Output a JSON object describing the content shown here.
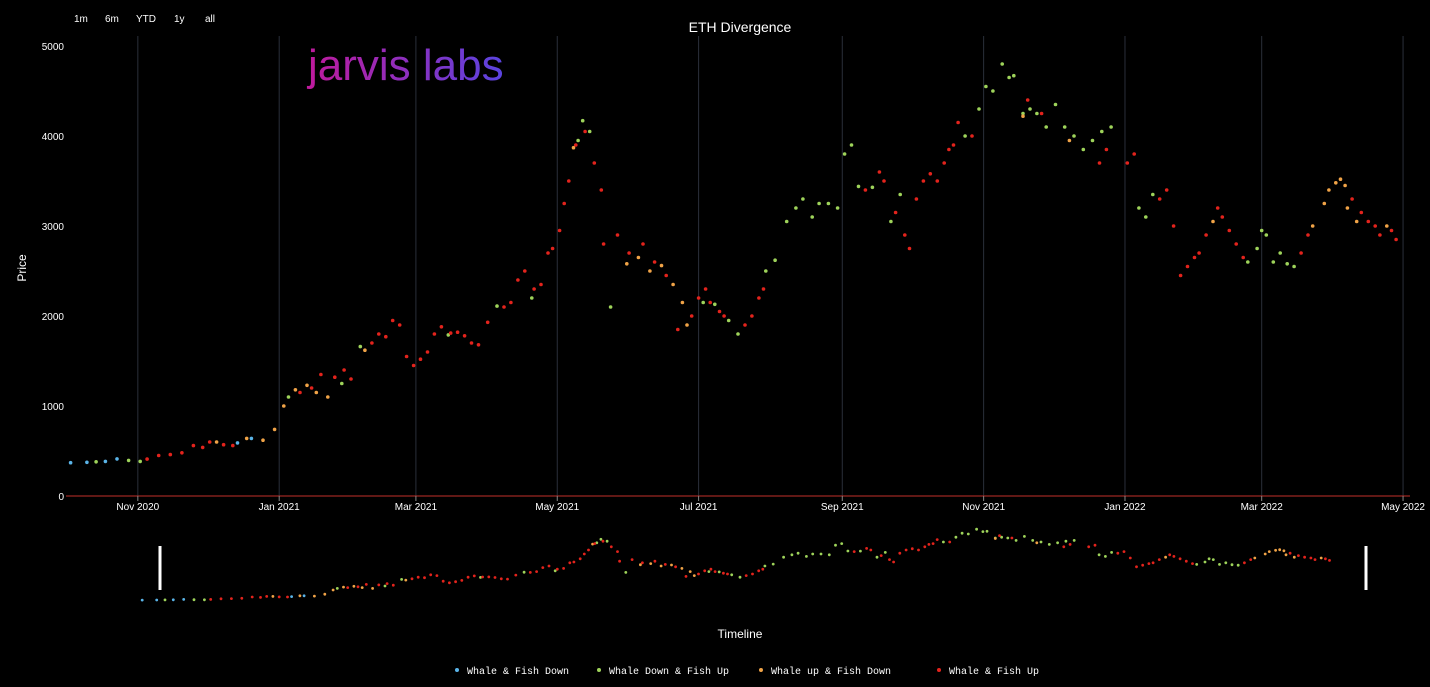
{
  "range_buttons": [
    "1m",
    "6m",
    "YTD",
    "1y",
    "all"
  ],
  "logo_text": "jarvis labs",
  "chart_data": {
    "type": "scatter",
    "title": "ETH Divergence",
    "xlabel": "Timeline",
    "ylabel": "Price",
    "ylim": [
      0,
      5000
    ],
    "xlim": [
      "2020-10-01",
      "2022-05-04"
    ],
    "y_ticks": [
      0,
      1000,
      2000,
      3000,
      4000,
      5000
    ],
    "x_ticks": [
      {
        "date": "2020-11-01",
        "label": "Nov 2020"
      },
      {
        "date": "2021-01-01",
        "label": "Jan 2021"
      },
      {
        "date": "2021-03-01",
        "label": "Mar 2021"
      },
      {
        "date": "2021-05-01",
        "label": "May 2021"
      },
      {
        "date": "2021-07-01",
        "label": "Jul 2021"
      },
      {
        "date": "2021-09-01",
        "label": "Sep 2021"
      },
      {
        "date": "2021-11-01",
        "label": "Nov 2021"
      },
      {
        "date": "2022-01-01",
        "label": "Jan 2022"
      },
      {
        "date": "2022-03-01",
        "label": "Mar 2022"
      },
      {
        "date": "2022-05-01",
        "label": "May 2022"
      }
    ],
    "grid": "vertical",
    "legend_position": "bottom",
    "series": [
      {
        "name": "Whale & Fish Down",
        "color": "#5ab4e8",
        "points": [
          [
            "2020-10-03",
            370
          ],
          [
            "2020-10-10",
            375
          ],
          [
            "2020-10-18",
            385
          ],
          [
            "2020-10-23",
            412
          ],
          [
            "2020-12-14",
            590
          ],
          [
            "2020-12-20",
            640
          ]
        ]
      },
      {
        "name": "Whale Down & Fish Up",
        "color": "#9ed35a",
        "points": [
          [
            "2020-10-14",
            380
          ],
          [
            "2020-10-28",
            395
          ],
          [
            "2020-11-02",
            385
          ],
          [
            "2021-01-05",
            1100
          ],
          [
            "2021-01-28",
            1250
          ],
          [
            "2021-02-05",
            1660
          ],
          [
            "2021-03-15",
            1790
          ],
          [
            "2021-04-05",
            2110
          ],
          [
            "2021-04-20",
            2200
          ],
          [
            "2021-05-10",
            3950
          ],
          [
            "2021-05-12",
            4170
          ],
          [
            "2021-05-15",
            4050
          ],
          [
            "2021-05-24",
            2100
          ],
          [
            "2021-07-03",
            2150
          ],
          [
            "2021-07-08",
            2130
          ],
          [
            "2021-07-14",
            1950
          ],
          [
            "2021-07-18",
            1800
          ],
          [
            "2021-07-30",
            2500
          ],
          [
            "2021-08-03",
            2620
          ],
          [
            "2021-08-08",
            3050
          ],
          [
            "2021-08-12",
            3200
          ],
          [
            "2021-08-15",
            3300
          ],
          [
            "2021-08-19",
            3100
          ],
          [
            "2021-08-22",
            3250
          ],
          [
            "2021-08-26",
            3250
          ],
          [
            "2021-08-30",
            3200
          ],
          [
            "2021-09-02",
            3800
          ],
          [
            "2021-09-05",
            3900
          ],
          [
            "2021-09-08",
            3440
          ],
          [
            "2021-09-14",
            3430
          ],
          [
            "2021-09-22",
            3050
          ],
          [
            "2021-09-26",
            3350
          ],
          [
            "2021-10-24",
            4000
          ],
          [
            "2021-10-30",
            4300
          ],
          [
            "2021-11-02",
            4550
          ],
          [
            "2021-11-05",
            4500
          ],
          [
            "2021-11-09",
            4800
          ],
          [
            "2021-11-12",
            4650
          ],
          [
            "2021-11-14",
            4670
          ],
          [
            "2021-11-18",
            4250
          ],
          [
            "2021-11-21",
            4300
          ],
          [
            "2021-11-24",
            4250
          ],
          [
            "2021-11-28",
            4100
          ],
          [
            "2021-12-02",
            4350
          ],
          [
            "2021-12-06",
            4100
          ],
          [
            "2021-12-10",
            4000
          ],
          [
            "2021-12-14",
            3850
          ],
          [
            "2021-12-18",
            3950
          ],
          [
            "2021-12-22",
            4050
          ],
          [
            "2021-12-26",
            4100
          ],
          [
            "2022-01-07",
            3200
          ],
          [
            "2022-01-10",
            3100
          ],
          [
            "2022-01-13",
            3350
          ],
          [
            "2022-02-23",
            2600
          ],
          [
            "2022-02-27",
            2750
          ],
          [
            "2022-03-01",
            2950
          ],
          [
            "2022-03-03",
            2900
          ],
          [
            "2022-03-06",
            2600
          ],
          [
            "2022-03-09",
            2700
          ],
          [
            "2022-03-12",
            2580
          ],
          [
            "2022-03-15",
            2550
          ]
        ]
      },
      {
        "name": "Whale up & Fish Down",
        "color": "#f0a347",
        "points": [
          [
            "2020-12-05",
            600
          ],
          [
            "2020-12-18",
            640
          ],
          [
            "2020-12-25",
            620
          ],
          [
            "2020-12-30",
            740
          ],
          [
            "2021-01-03",
            1000
          ],
          [
            "2021-01-08",
            1180
          ],
          [
            "2021-01-13",
            1230
          ],
          [
            "2021-01-17",
            1150
          ],
          [
            "2021-01-22",
            1100
          ],
          [
            "2021-02-07",
            1620
          ],
          [
            "2021-05-08",
            3870
          ],
          [
            "2021-05-31",
            2580
          ],
          [
            "2021-06-05",
            2650
          ],
          [
            "2021-06-10",
            2500
          ],
          [
            "2021-06-15",
            2560
          ],
          [
            "2021-06-20",
            2350
          ],
          [
            "2021-06-24",
            2150
          ],
          [
            "2021-06-26",
            1900
          ],
          [
            "2021-11-18",
            4220
          ],
          [
            "2021-12-08",
            3950
          ],
          [
            "2022-02-08",
            3050
          ],
          [
            "2022-03-23",
            3000
          ],
          [
            "2022-03-28",
            3250
          ],
          [
            "2022-03-30",
            3400
          ],
          [
            "2022-04-02",
            3480
          ],
          [
            "2022-04-04",
            3520
          ],
          [
            "2022-04-06",
            3450
          ],
          [
            "2022-04-07",
            3200
          ],
          [
            "2022-04-11",
            3050
          ],
          [
            "2022-04-24",
            3000
          ]
        ]
      },
      {
        "name": "Whale & Fish Up",
        "color": "#e3231c",
        "points": [
          [
            "2020-11-05",
            410
          ],
          [
            "2020-11-10",
            450
          ],
          [
            "2020-11-15",
            460
          ],
          [
            "2020-11-20",
            480
          ],
          [
            "2020-11-25",
            560
          ],
          [
            "2020-11-29",
            540
          ],
          [
            "2020-12-02",
            600
          ],
          [
            "2020-12-08",
            570
          ],
          [
            "2020-12-12",
            560
          ],
          [
            "2021-01-10",
            1150
          ],
          [
            "2021-01-15",
            1200
          ],
          [
            "2021-01-19",
            1350
          ],
          [
            "2021-01-25",
            1320
          ],
          [
            "2021-01-29",
            1400
          ],
          [
            "2021-02-01",
            1300
          ],
          [
            "2021-02-10",
            1700
          ],
          [
            "2021-02-13",
            1800
          ],
          [
            "2021-02-16",
            1770
          ],
          [
            "2021-02-19",
            1950
          ],
          [
            "2021-02-22",
            1900
          ],
          [
            "2021-02-25",
            1550
          ],
          [
            "2021-02-28",
            1450
          ],
          [
            "2021-03-03",
            1520
          ],
          [
            "2021-03-06",
            1600
          ],
          [
            "2021-03-09",
            1800
          ],
          [
            "2021-03-12",
            1880
          ],
          [
            "2021-03-16",
            1810
          ],
          [
            "2021-03-19",
            1820
          ],
          [
            "2021-03-22",
            1780
          ],
          [
            "2021-03-25",
            1700
          ],
          [
            "2021-03-28",
            1680
          ],
          [
            "2021-04-01",
            1930
          ],
          [
            "2021-04-08",
            2100
          ],
          [
            "2021-04-11",
            2150
          ],
          [
            "2021-04-14",
            2400
          ],
          [
            "2021-04-17",
            2500
          ],
          [
            "2021-04-21",
            2300
          ],
          [
            "2021-04-24",
            2350
          ],
          [
            "2021-04-27",
            2700
          ],
          [
            "2021-04-29",
            2750
          ],
          [
            "2021-05-02",
            2950
          ],
          [
            "2021-05-04",
            3250
          ],
          [
            "2021-05-06",
            3500
          ],
          [
            "2021-05-09",
            3900
          ],
          [
            "2021-05-13",
            4050
          ],
          [
            "2021-05-17",
            3700
          ],
          [
            "2021-05-20",
            3400
          ],
          [
            "2021-05-21",
            2800
          ],
          [
            "2021-05-27",
            2900
          ],
          [
            "2021-06-01",
            2700
          ],
          [
            "2021-06-07",
            2800
          ],
          [
            "2021-06-12",
            2600
          ],
          [
            "2021-06-17",
            2450
          ],
          [
            "2021-06-22",
            1850
          ],
          [
            "2021-06-28",
            2000
          ],
          [
            "2021-07-01",
            2200
          ],
          [
            "2021-07-04",
            2300
          ],
          [
            "2021-07-06",
            2150
          ],
          [
            "2021-07-10",
            2050
          ],
          [
            "2021-07-12",
            2000
          ],
          [
            "2021-07-21",
            1900
          ],
          [
            "2021-07-24",
            2000
          ],
          [
            "2021-07-27",
            2200
          ],
          [
            "2021-07-29",
            2300
          ],
          [
            "2021-09-11",
            3400
          ],
          [
            "2021-09-17",
            3600
          ],
          [
            "2021-09-19",
            3500
          ],
          [
            "2021-09-24",
            3150
          ],
          [
            "2021-09-28",
            2900
          ],
          [
            "2021-09-30",
            2750
          ],
          [
            "2021-10-03",
            3300
          ],
          [
            "2021-10-06",
            3500
          ],
          [
            "2021-10-09",
            3580
          ],
          [
            "2021-10-12",
            3500
          ],
          [
            "2021-10-15",
            3700
          ],
          [
            "2021-10-17",
            3850
          ],
          [
            "2021-10-19",
            3900
          ],
          [
            "2021-10-21",
            4150
          ],
          [
            "2021-10-27",
            4000
          ],
          [
            "2021-11-20",
            4400
          ],
          [
            "2021-11-26",
            4250
          ],
          [
            "2021-12-21",
            3700
          ],
          [
            "2021-12-24",
            3850
          ],
          [
            "2022-01-02",
            3700
          ],
          [
            "2022-01-05",
            3800
          ],
          [
            "2022-01-16",
            3300
          ],
          [
            "2022-01-19",
            3400
          ],
          [
            "2022-01-22",
            3000
          ],
          [
            "2022-01-25",
            2450
          ],
          [
            "2022-01-28",
            2550
          ],
          [
            "2022-01-31",
            2650
          ],
          [
            "2022-02-02",
            2700
          ],
          [
            "2022-02-05",
            2900
          ],
          [
            "2022-02-10",
            3200
          ],
          [
            "2022-02-12",
            3100
          ],
          [
            "2022-02-15",
            2950
          ],
          [
            "2022-02-18",
            2800
          ],
          [
            "2022-02-21",
            2650
          ],
          [
            "2022-03-18",
            2700
          ],
          [
            "2022-03-21",
            2900
          ],
          [
            "2022-04-09",
            3300
          ],
          [
            "2022-04-13",
            3150
          ],
          [
            "2022-04-16",
            3050
          ],
          [
            "2022-04-19",
            3000
          ],
          [
            "2022-04-21",
            2900
          ],
          [
            "2022-04-26",
            2950
          ],
          [
            "2022-04-28",
            2850
          ]
        ]
      }
    ]
  }
}
